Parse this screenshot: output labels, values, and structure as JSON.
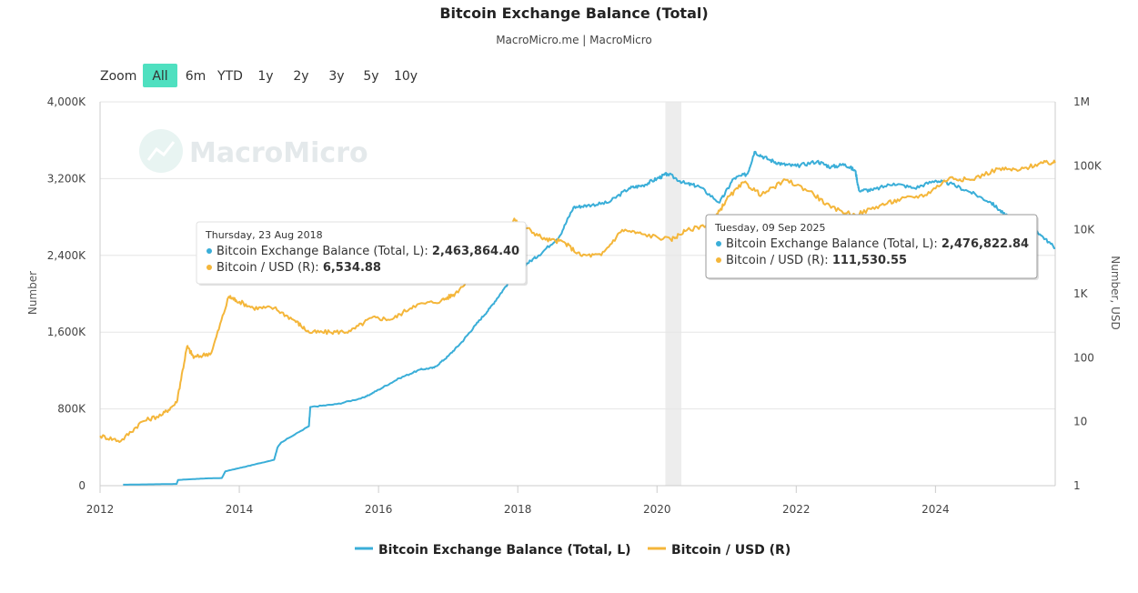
{
  "header": {
    "title": "Bitcoin Exchange Balance (Total)",
    "subtitle": "MacroMicro.me | MacroMicro"
  },
  "zoom": {
    "label": "Zoom",
    "buttons": [
      "All",
      "6m",
      "YTD",
      "1y",
      "2y",
      "3y",
      "5y",
      "10y"
    ],
    "active": "All",
    "active_color": "#4fe0c0"
  },
  "watermark": "MacroMicro",
  "colors": {
    "balance": "#3aaed8",
    "price": "#f4b63a",
    "grid": "#e6e6e6",
    "highlight_band": "#ededed"
  },
  "tooltips": [
    {
      "date": "Thursday, 23 Aug 2018",
      "lines": [
        {
          "label": "Bitcoin Exchange Balance (Total, L): ",
          "value": "2,463,864.40",
          "color": "#3aaed8"
        },
        {
          "label": "Bitcoin / USD (R): ",
          "value": "6,534.88",
          "color": "#f4b63a"
        }
      ]
    },
    {
      "date": "Tuesday, 09 Sep 2025",
      "lines": [
        {
          "label": "Bitcoin Exchange Balance (Total, L): ",
          "value": "2,476,822.84",
          "color": "#3aaed8"
        },
        {
          "label": "Bitcoin / USD (R): ",
          "value": "111,530.55",
          "color": "#f4b63a"
        }
      ]
    }
  ],
  "legend": [
    {
      "name": "Bitcoin Exchange Balance (Total, L)",
      "color": "#3aaed8"
    },
    {
      "name": "Bitcoin / USD (R)",
      "color": "#f4b63a"
    }
  ],
  "chart_data": {
    "type": "line",
    "x_range": [
      2012.0,
      2025.72
    ],
    "x_ticks": [
      "2012",
      "2014",
      "2016",
      "2018",
      "2020",
      "2022",
      "2024"
    ],
    "x_tick_values": [
      2012,
      2014,
      2016,
      2018,
      2020,
      2022,
      2024
    ],
    "y_left": {
      "label": "Number",
      "range": [
        0,
        4000000
      ],
      "ticks": [
        "0",
        "800K",
        "1,600K",
        "2,400K",
        "3,200K",
        "4,000K"
      ],
      "tick_values": [
        0,
        800000,
        1600000,
        2400000,
        3200000,
        4000000
      ]
    },
    "y_right": {
      "label": "Number, USD",
      "scale": "log",
      "range": [
        1,
        1000000
      ],
      "ticks": [
        "1",
        "10",
        "100",
        "1K",
        "10K",
        "100K",
        "1M"
      ],
      "tick_values": [
        1,
        10,
        100,
        1000,
        10000,
        100000,
        1000000
      ]
    },
    "highlight_band": [
      2020.12,
      2020.35
    ],
    "series": [
      {
        "name": "Bitcoin Exchange Balance (Total, L)",
        "axis": "left",
        "x": [
          2012.33,
          2012.8,
          2013.1,
          2013.12,
          2013.5,
          2013.75,
          2013.8,
          2014.1,
          2014.5,
          2014.55,
          2014.6,
          2015.0,
          2015.02,
          2015.4,
          2015.8,
          2016.0,
          2016.3,
          2016.6,
          2016.8,
          2017.0,
          2017.2,
          2017.4,
          2017.6,
          2017.8,
          2018.0,
          2018.1,
          2018.3,
          2018.6,
          2018.8,
          2019.0,
          2019.3,
          2019.6,
          2019.8,
          2020.0,
          2020.15,
          2020.4,
          2020.6,
          2020.9,
          2021.1,
          2021.3,
          2021.4,
          2021.6,
          2021.8,
          2022.0,
          2022.3,
          2022.5,
          2022.7,
          2022.85,
          2022.9,
          2023.1,
          2023.4,
          2023.7,
          2024.0,
          2024.2,
          2024.5,
          2024.8,
          2025.0,
          2025.3,
          2025.5,
          2025.72
        ],
        "values": [
          10000,
          15000,
          18000,
          60000,
          75000,
          80000,
          150000,
          200000,
          270000,
          400000,
          450000,
          620000,
          820000,
          850000,
          920000,
          1000000,
          1120000,
          1210000,
          1230000,
          1350000,
          1500000,
          1680000,
          1850000,
          2050000,
          2250000,
          2300000,
          2400000,
          2600000,
          2900000,
          2920000,
          2950000,
          3100000,
          3130000,
          3200000,
          3250000,
          3150000,
          3120000,
          2950000,
          3200000,
          3250000,
          3480000,
          3400000,
          3350000,
          3330000,
          3380000,
          3320000,
          3350000,
          3280000,
          3080000,
          3080000,
          3150000,
          3100000,
          3180000,
          3150000,
          3060000,
          2950000,
          2820000,
          2780000,
          2620000,
          2476822
        ]
      },
      {
        "name": "Bitcoin / USD (R)",
        "axis": "right",
        "x": [
          2012.0,
          2012.3,
          2012.6,
          2012.9,
          2013.1,
          2013.25,
          2013.35,
          2013.6,
          2013.85,
          2013.95,
          2014.2,
          2014.5,
          2014.8,
          2015.0,
          2015.3,
          2015.6,
          2015.9,
          2016.2,
          2016.5,
          2016.9,
          2017.1,
          2017.4,
          2017.65,
          2017.95,
          2018.1,
          2018.4,
          2018.65,
          2018.9,
          2019.2,
          2019.5,
          2019.8,
          2020.2,
          2020.4,
          2020.8,
          2021.0,
          2021.25,
          2021.5,
          2021.85,
          2022.2,
          2022.5,
          2022.85,
          2023.2,
          2023.5,
          2023.85,
          2024.2,
          2024.5,
          2024.9,
          2025.2,
          2025.5,
          2025.72
        ],
        "values": [
          6,
          5,
          10,
          13,
          20,
          150,
          100,
          120,
          900,
          800,
          600,
          600,
          380,
          250,
          250,
          260,
          420,
          400,
          650,
          780,
          1000,
          2300,
          4000,
          15000,
          11000,
          7000,
          6534,
          4000,
          4000,
          10000,
          8500,
          7000,
          9500,
          13000,
          30000,
          55000,
          35000,
          60000,
          40000,
          22000,
          17000,
          24000,
          30000,
          35000,
          65000,
          60000,
          90000,
          85000,
          110000,
          111530
        ]
      }
    ]
  }
}
